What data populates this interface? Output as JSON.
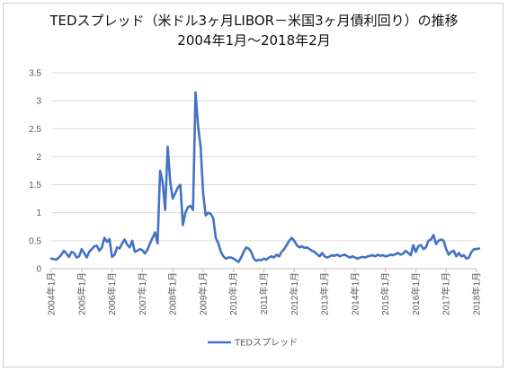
{
  "chart_data": {
    "type": "line",
    "title": "TEDスプレッド（米ドル3ヶ月LIBOR－米国3ヶ月債利回り）の推移",
    "subtitle": "2004年1月～2018年2月",
    "xlabel": "",
    "ylabel": "",
    "ylim": [
      0,
      3.5
    ],
    "yticks": [
      "0",
      "0.5",
      "1",
      "1.5",
      "2",
      "2.5",
      "3",
      "3.5"
    ],
    "xticks": [
      "2004年1月",
      "2005年1月",
      "2006年1月",
      "2007年1月",
      "2008年1月",
      "2009年1月",
      "2010年1月",
      "2011年1月",
      "2012年1月",
      "2013年1月",
      "2014年1月",
      "2015年1月",
      "2016年1月",
      "2017年1月",
      "2018年1月"
    ],
    "grid": true,
    "legend_position": "bottom",
    "series_color": "#4472C4",
    "series": [
      {
        "name": "TEDスプレッド",
        "x_start": "2004年1月",
        "frequency": "monthly",
        "values": [
          0.18,
          0.17,
          0.16,
          0.2,
          0.25,
          0.32,
          0.27,
          0.21,
          0.3,
          0.28,
          0.2,
          0.22,
          0.35,
          0.28,
          0.2,
          0.3,
          0.35,
          0.4,
          0.41,
          0.32,
          0.38,
          0.55,
          0.48,
          0.53,
          0.21,
          0.25,
          0.38,
          0.36,
          0.45,
          0.52,
          0.43,
          0.38,
          0.5,
          0.3,
          0.32,
          0.35,
          0.33,
          0.27,
          0.34,
          0.45,
          0.55,
          0.65,
          0.45,
          1.75,
          1.55,
          1.05,
          2.18,
          1.55,
          1.25,
          1.35,
          1.45,
          1.5,
          0.78,
          1.0,
          1.1,
          1.12,
          1.05,
          3.15,
          2.55,
          2.18,
          1.35,
          0.95,
          1.0,
          0.98,
          0.9,
          0.55,
          0.45,
          0.3,
          0.22,
          0.18,
          0.2,
          0.2,
          0.18,
          0.15,
          0.12,
          0.2,
          0.3,
          0.38,
          0.36,
          0.3,
          0.18,
          0.14,
          0.16,
          0.15,
          0.18,
          0.16,
          0.2,
          0.22,
          0.2,
          0.25,
          0.22,
          0.3,
          0.35,
          0.42,
          0.5,
          0.55,
          0.5,
          0.42,
          0.38,
          0.4,
          0.37,
          0.38,
          0.35,
          0.32,
          0.3,
          0.26,
          0.22,
          0.28,
          0.22,
          0.2,
          0.22,
          0.24,
          0.23,
          0.25,
          0.22,
          0.24,
          0.25,
          0.22,
          0.2,
          0.22,
          0.2,
          0.18,
          0.2,
          0.21,
          0.2,
          0.22,
          0.23,
          0.24,
          0.22,
          0.25,
          0.23,
          0.24,
          0.22,
          0.23,
          0.25,
          0.24,
          0.26,
          0.28,
          0.25,
          0.27,
          0.32,
          0.28,
          0.24,
          0.42,
          0.3,
          0.4,
          0.42,
          0.35,
          0.38,
          0.5,
          0.52,
          0.6,
          0.44,
          0.5,
          0.52,
          0.5,
          0.35,
          0.25,
          0.3,
          0.32,
          0.22,
          0.28,
          0.22,
          0.24,
          0.18,
          0.2,
          0.3,
          0.35,
          0.35,
          0.36
        ]
      }
    ]
  }
}
